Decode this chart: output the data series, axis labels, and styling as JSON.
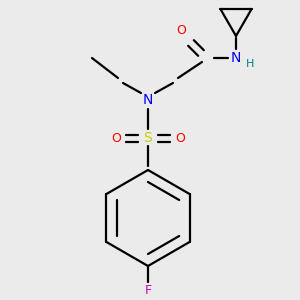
{
  "background_color": "#ebebeb",
  "bond_color": "#000000",
  "n_color": "#0000ff",
  "o_color": "#ff0000",
  "s_color": "#cccc00",
  "f_color": "#cc00cc",
  "h_color": "#008080",
  "figsize": [
    3.0,
    3.0
  ],
  "dpi": 100,
  "xlim": [
    0,
    300
  ],
  "ylim": [
    0,
    300
  ]
}
